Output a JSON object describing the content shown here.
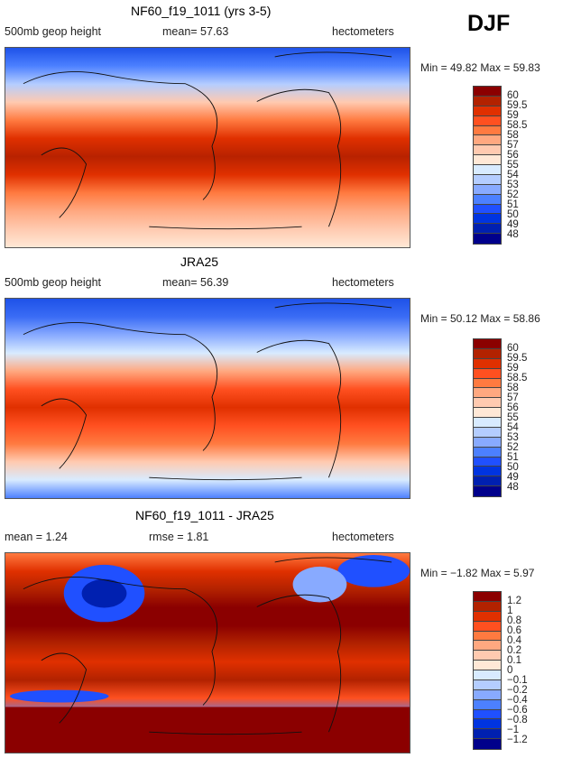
{
  "season": "DJF",
  "panels": [
    {
      "title": "NF60_f19_1011 (yrs 3-5)",
      "left": "500mb  geop  height",
      "mid": "mean=   57.63",
      "units": "hectometers",
      "minmax": "Min =   49.82  Max =   59.83",
      "levels": [
        "60",
        "59.5",
        "59",
        "58.5",
        "58",
        "57",
        "56",
        "55",
        "54",
        "53",
        "52",
        "51",
        "50",
        "49",
        "48"
      ],
      "bands": [
        "#1e52e8",
        "#4c80ff",
        "#b4cdff",
        "#ffcab0",
        "#ff7a40",
        "#e03000",
        "#b82200",
        "#e03000",
        "#ff7a40",
        "#ffa880",
        "#ffcab0",
        "#ffe8d6"
      ]
    },
    {
      "title": "JRA25",
      "left": "500mb  geop  height",
      "mid": "mean=   56.39",
      "units": "hectometers",
      "minmax": "Min =   50.12  Max =   58.86",
      "levels": [
        "60",
        "59.5",
        "59",
        "58.5",
        "58",
        "57",
        "56",
        "55",
        "54",
        "53",
        "52",
        "51",
        "50",
        "49",
        "48"
      ],
      "bands": [
        "#1e52e8",
        "#3a6cf5",
        "#88aaff",
        "#d8ebff",
        "#ffa880",
        "#ff5020",
        "#e03000",
        "#ff5020",
        "#ff7a40",
        "#ffcab0",
        "#d8ebff",
        "#4c80ff"
      ]
    },
    {
      "title": "NF60_f19_1011 - JRA25",
      "left": "mean =    1.24",
      "mid": "rmse =    1.81",
      "units": "hectometers",
      "minmax": "Min =  −1.82  Max =    5.97",
      "levels": [
        "1.2",
        "1",
        "0.8",
        "0.6",
        "0.4",
        "0.2",
        "0.1",
        "0",
        "−0.1",
        "−0.2",
        "−0.4",
        "−0.6",
        "−0.8",
        "−1",
        "−1.2"
      ],
      "bands": [
        "#ff7a40",
        "#e03000",
        "#b22200",
        "#8b0000",
        "#8b0000",
        "#b22200",
        "#e03000",
        "#b22200",
        "#ff5020",
        "#4c80ff",
        "#e03000",
        "#8b0000"
      ]
    }
  ],
  "colors": [
    "#8b0000",
    "#b22200",
    "#e03000",
    "#ff5020",
    "#ff7a40",
    "#ffa880",
    "#ffcab0",
    "#ffe8d6",
    "#d8ebff",
    "#b4cdff",
    "#88aaff",
    "#4c80ff",
    "#2050ff",
    "#0034e0",
    "#0020b0",
    "#00008b"
  ]
}
